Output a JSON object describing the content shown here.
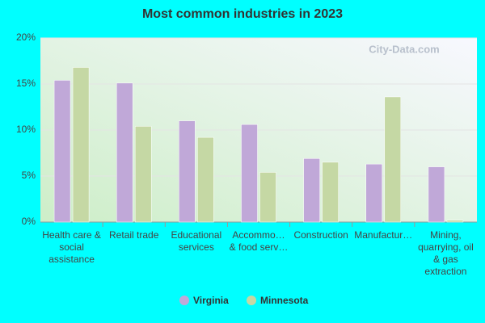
{
  "chart_data": {
    "type": "bar",
    "title": "Most common industries in 2023",
    "watermark": "City-Data.com",
    "categories": [
      "Health care & social assistance",
      "Retail trade",
      "Educational services",
      "Accommo… & food serv…",
      "Construction",
      "Manufactur…",
      "Mining, quarrying, oil & gas extraction"
    ],
    "series": [
      {
        "name": "Virginia",
        "color": "#c0a8d8",
        "values": [
          15.4,
          15.1,
          11.0,
          10.6,
          6.9,
          6.3,
          6.0
        ]
      },
      {
        "name": "Minnesota",
        "color": "#c5d8a4",
        "values": [
          16.8,
          10.4,
          9.2,
          5.4,
          6.5,
          13.6,
          0.2
        ]
      }
    ],
    "ylim": [
      0,
      20
    ],
    "yticks": [
      {
        "value": 0,
        "label": "0%"
      },
      {
        "value": 5,
        "label": "5%"
      },
      {
        "value": 10,
        "label": "10%"
      },
      {
        "value": 15,
        "label": "15%"
      },
      {
        "value": 20,
        "label": "20%"
      }
    ],
    "grid": true,
    "legend": "bottom"
  }
}
